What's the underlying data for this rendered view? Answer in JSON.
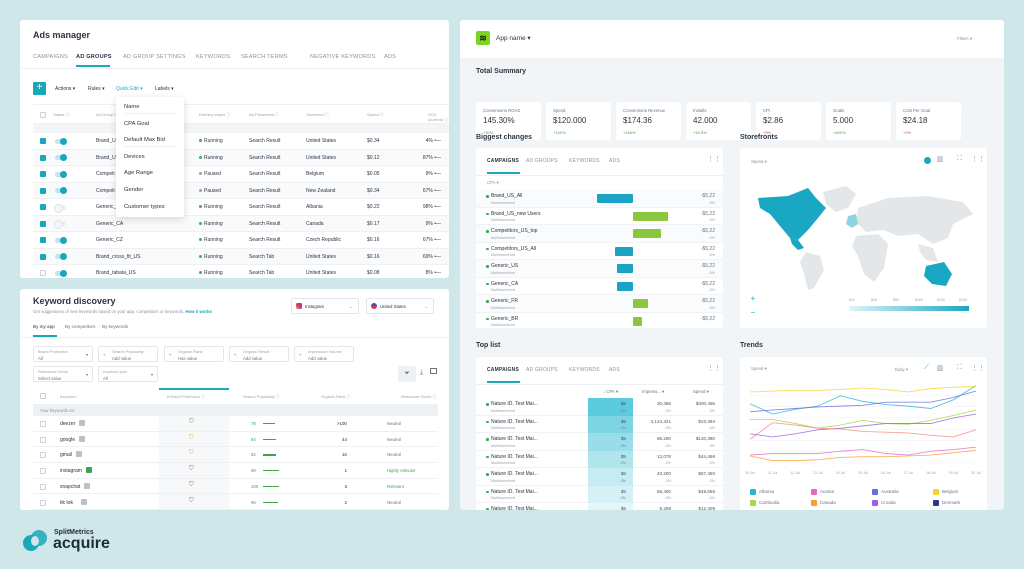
{
  "ads_manager": {
    "title": "Ads manager",
    "tabs": [
      "CAMPAIGNS",
      "AD GROUPS",
      "AD GROUP SETTINGS",
      "KEYWORDS",
      "SEARCH TERMS",
      "NEGATIVE KEYWORDS",
      "ADS"
    ],
    "active_tab": "AD GROUPS",
    "toolbar": {
      "add": "+",
      "actions": "Actions ▾",
      "rules": "Rules ▾",
      "quick_edit": "Quick Edit ▾",
      "labels": "Labels ▾"
    },
    "columns": [
      "Status ⓘ",
      "Ad Group N",
      "Delivery status ⓘ",
      "Ad Placement ⓘ",
      "Storefront ⓘ",
      "Spend ⓘ",
      "SOV (current) ⓘ"
    ],
    "quick_edit_menu": [
      "Name",
      "CPA Goal",
      "Default Max Bid",
      "Devices",
      "Age Range",
      "Gender",
      "Customer types"
    ],
    "rows": [
      {
        "checked": true,
        "on": true,
        "name": "Brand_U",
        "delivery": "Running",
        "placement": "Search Result",
        "storefront": "United States",
        "spend": "$0.34",
        "sov": "4%"
      },
      {
        "checked": true,
        "on": true,
        "name": "Brand_U",
        "delivery": "Running",
        "placement": "Search Result",
        "storefront": "United States",
        "spend": "$0.12",
        "sov": "87%"
      },
      {
        "checked": true,
        "on": true,
        "name": "Competi",
        "delivery": "Paused",
        "placement": "Search Result",
        "storefront": "Belgium",
        "spend": "$0.05",
        "sov": "9%"
      },
      {
        "checked": true,
        "on": true,
        "name": "Competi",
        "delivery": "Paused",
        "placement": "Search Result",
        "storefront": "New Zealand",
        "spend": "$0.34",
        "sov": "67%"
      },
      {
        "checked": true,
        "on": false,
        "name": "Generic_",
        "delivery": "Running",
        "placement": "Search Result",
        "storefront": "Albania",
        "spend": "$0.22",
        "sov": "98%"
      },
      {
        "checked": true,
        "on": false,
        "name": "Generic_CA",
        "delivery": "Running",
        "placement": "Search Result",
        "storefront": "Canada",
        "spend": "$0.17",
        "sov": "9%"
      },
      {
        "checked": true,
        "on": true,
        "name": "Generic_CZ",
        "delivery": "Running",
        "placement": "Search Result",
        "storefront": "Czech Republic",
        "spend": "$0.16",
        "sov": "67%"
      },
      {
        "checked": true,
        "on": true,
        "name": "Brand_cross_fit_US",
        "delivery": "Running",
        "placement": "Search Tab",
        "storefront": "United States",
        "spend": "$0.16",
        "sov": "69%"
      },
      {
        "checked": false,
        "on": true,
        "name": "Brand_tabata_US",
        "delivery": "Running",
        "placement": "Search Tab",
        "storefront": "United States",
        "spend": "$0.08",
        "sov": "8%"
      }
    ],
    "status_colors": {
      "Running": "#2fb36b",
      "Paused": "#9aa3ad"
    }
  },
  "keyword_discovery": {
    "title": "Keyword discovery",
    "subtitle": "Get suggestions of new keywords based on your app, competitors or keywords.",
    "how_link": "How it works",
    "app_select": "Instagram",
    "country_select": "United States",
    "tabs": [
      "By my app",
      "By competitors",
      "By keywords"
    ],
    "filters": [
      {
        "label": "Brand Protection",
        "value": "All"
      },
      {
        "label": "Search Popularity",
        "value": "Add value"
      },
      {
        "label": "Organic Rank",
        "value": "Has value"
      },
      {
        "label": "Organic Result",
        "value": "Add value"
      },
      {
        "label": "Impression Volume",
        "value": "Add value"
      },
      {
        "label": "Relevance Score",
        "value": "Select value"
      },
      {
        "label": "Keyword type",
        "value": "All"
      }
    ],
    "columns": [
      "Keyword",
      "Brand Protection ⓘ",
      "Search Popularity ⓘ",
      "Organic Rank ⓘ",
      "Relevance Score ⓘ"
    ],
    "group_label": "Your keywords 44",
    "rows": [
      {
        "keyword": "deezer",
        "protection": "safe",
        "popularity": "78",
        "rank": ">100",
        "relevance": "Neutral"
      },
      {
        "keyword": "google",
        "protection": "warn",
        "popularity": "84",
        "rank": "44",
        "relevance": "Neutral"
      },
      {
        "keyword": "gmail",
        "protection": "warn",
        "popularity": "82",
        "rank": "16",
        "relevance": "Neutral"
      },
      {
        "keyword": "instagram",
        "protection": "risk",
        "popularity": "99",
        "rank": "1",
        "relevance": "Highly relevant"
      },
      {
        "keyword": "snapchat",
        "protection": "risk",
        "popularity": "100",
        "rank": "3",
        "relevance": "Relevant"
      },
      {
        "keyword": "tik tok",
        "protection": "risk",
        "popularity": "95",
        "rank": "2",
        "relevance": "Neutral"
      }
    ]
  },
  "dashboard": {
    "app_name": "App name ▾",
    "filters": "Filters ▾",
    "summary_title": "Total Summary",
    "summary": [
      {
        "label": "Conversions ROAS",
        "value": "145.30%",
        "delta": "+30%",
        "up": true
      },
      {
        "label": "Spend",
        "value": "$120.000",
        "delta": "+140%",
        "up": true
      },
      {
        "label": "Conversions Revenue",
        "value": "$174.36",
        "delta": "+165%",
        "up": true
      },
      {
        "label": "Installs",
        "value": "42.000",
        "delta": "+16.5%",
        "up": true
      },
      {
        "label": "CPI",
        "value": "$2.86",
        "delta": "+5%",
        "up": false
      },
      {
        "label": "Goals",
        "value": "5.000",
        "delta": "+400%",
        "up": true
      },
      {
        "label": "Cost Per Goal",
        "value": "$24.18",
        "delta": "+2%",
        "up": false
      }
    ],
    "biggest_changes": {
      "title": "Biggest changes",
      "tabs": [
        "CAMPAIGNS",
        "AD GROUPS",
        "KEYWORDS",
        "ADS"
      ],
      "metric": "CPA ▾",
      "sub": "Multistorefront",
      "rows": [
        {
          "name": "Brand_US_All",
          "change": -36,
          "value": "-$5,22",
          "pct": "-3%"
        },
        {
          "name": "Brand_US_new Users",
          "change": 35,
          "value": "-$5,22",
          "pct": "-3%"
        },
        {
          "name": "Competitors_US_top",
          "change": 28,
          "value": "-$5,22",
          "pct": "-3%"
        },
        {
          "name": "Competitors_US_All",
          "change": -18,
          "value": "-$5,22",
          "pct": "-3%"
        },
        {
          "name": "Generic_US",
          "change": -16,
          "value": "-$5,22",
          "pct": "-3%"
        },
        {
          "name": "Generic_CA",
          "change": -16,
          "value": "-$5,22",
          "pct": "-3%"
        },
        {
          "name": "Generic_FR",
          "change": 15,
          "value": "-$5,22",
          "pct": "-3%"
        },
        {
          "name": "Generic_BR",
          "change": 9,
          "value": "-$5,22",
          "pct": ""
        }
      ],
      "neg_color": "#1aa3c4",
      "pos_color": "#8cc63f"
    },
    "storefronts": {
      "title": "Storefronts",
      "metric": "Spend ▾",
      "scale": [
        "$10",
        "$25",
        "$50",
        "$100",
        "$125",
        "$150"
      ],
      "zoom_in": "+",
      "zoom_out": "−"
    },
    "top_list": {
      "title": "Top list",
      "tabs": [
        "CAMPAIGNS",
        "AD GROUPS",
        "KEYWORDS",
        "ADS"
      ],
      "columns": [
        "↓ CPA ▾",
        "Impress... ▾",
        "Spend ▾"
      ],
      "sub": "Multistorefront",
      "rows": [
        {
          "name": "Nature ID. Test Mai...",
          "cpa": "$5",
          "cpa_d": "-3%",
          "imp": "30,456",
          "imp_d": "-3%",
          "spend": "$300,456",
          "spend_d": "-3%"
        },
        {
          "name": "Nature ID. Test Mai...",
          "cpa": "$5",
          "cpa_d": "-3%",
          "imp": "3,124,321",
          "imp_d": "-3%",
          "spend": "$23,394",
          "spend_d": "-3%"
        },
        {
          "name": "Nature ID. Test Mai...",
          "cpa": "$5",
          "cpa_d": "-3%",
          "imp": "85,200",
          "imp_d": "-3%",
          "spend": "$120,380",
          "spend_d": "-3%"
        },
        {
          "name": "Nature ID. Test Mai...",
          "cpa": "$5",
          "cpa_d": "-3%",
          "imp": "12,078",
          "imp_d": "-3%",
          "spend": "$44,456",
          "spend_d": "-3%"
        },
        {
          "name": "Nature ID. Test Mai...",
          "cpa": "$5",
          "cpa_d": "-3%",
          "imp": "43,200",
          "imp_d": "-3%",
          "spend": "$67,450",
          "spend_d": "-3%"
        },
        {
          "name": "Nature ID. Test Mai...",
          "cpa": "$5",
          "cpa_d": "-3%",
          "imp": "56,400",
          "imp_d": "-3%",
          "spend": "$49,556",
          "spend_d": "-3%"
        },
        {
          "name": "Nature ID. Test Mai...",
          "cpa": "$5",
          "cpa_d": "",
          "imp": "8,298",
          "imp_d": "",
          "spend": "$12,309",
          "spend_d": ""
        }
      ]
    },
    "trends": {
      "title": "Trends",
      "metric": "Spend ▾",
      "period": "Daily ▾",
      "x": [
        "10 Jul",
        "11 Jul",
        "12 Jul",
        "13 Jul",
        "14 Jul",
        "15 Jul",
        "16 Jul",
        "17 Jul",
        "18 Jul",
        "19 Jul",
        "20 Jul"
      ],
      "series": [
        {
          "name": "Albania",
          "color": "#2bb5d0",
          "values": [
            75,
            62,
            68,
            72,
            85,
            78,
            74,
            72,
            69,
            80,
            98
          ]
        },
        {
          "name": "Austria",
          "color": "#e06bc0",
          "values": [
            10,
            12,
            12,
            12,
            15,
            17,
            12,
            10,
            15,
            17,
            20
          ]
        },
        {
          "name": "Australia",
          "color": "#6a6fe0",
          "values": [
            65,
            67,
            69,
            71,
            72,
            73,
            77,
            77,
            77,
            83,
            91
          ]
        },
        {
          "name": "Belgium",
          "color": "#f2d430",
          "values": [
            90,
            91,
            92,
            92,
            93,
            95,
            93,
            90,
            94,
            96,
            97
          ]
        },
        {
          "name": "Cambodia",
          "color": "#a5d94a",
          "values": [
            55,
            55,
            50,
            44,
            48,
            54,
            50,
            49,
            54,
            60,
            67
          ]
        },
        {
          "name": "Canada",
          "color": "#f5a030",
          "values": [
            9,
            3,
            3,
            4,
            7,
            8,
            8,
            9,
            10,
            13,
            16
          ]
        },
        {
          "name": "Croatia",
          "color": "#a060e0",
          "values": [
            37,
            33,
            37,
            42,
            44,
            47,
            50,
            50,
            50,
            57,
            62
          ]
        },
        {
          "name": "Denmark",
          "color": "#2a3a8a",
          "values": []
        },
        {
          "color": "#f28b82",
          "values": [
            30,
            51,
            48,
            44,
            43,
            40,
            39,
            38,
            35,
            33,
            42
          ]
        }
      ]
    }
  },
  "brand": {
    "name": "SplitMetrics",
    "product": "acquire"
  },
  "colors": {
    "accent": "#1aa7b8",
    "background": "#cfe7e8",
    "app_icon": "#7ed321"
  }
}
